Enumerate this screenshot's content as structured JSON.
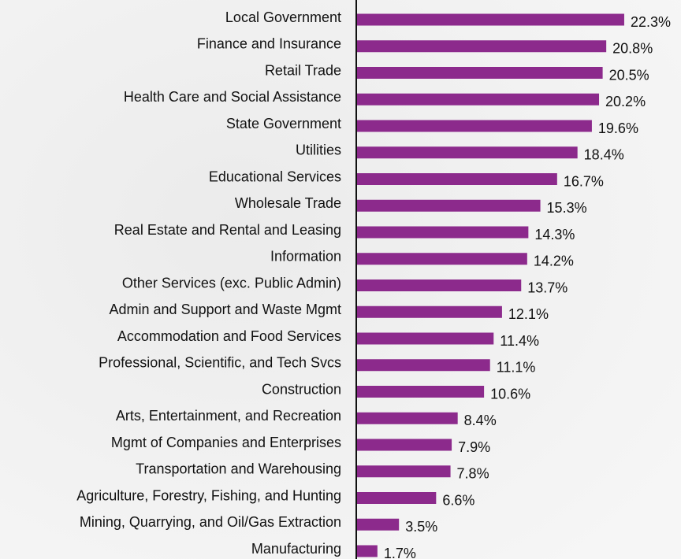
{
  "chart_data": {
    "type": "barh",
    "categories": [
      "Local Government",
      "Finance and Insurance",
      "Retail Trade",
      "Health Care and Social Assistance",
      "State Government",
      "Utilities",
      "Educational Services",
      "Wholesale Trade",
      "Real Estate and Rental and Leasing",
      "Information",
      "Other Services (exc. Public Admin)",
      "Admin and Support and Waste Mgmt",
      "Accommodation and Food Services",
      "Professional, Scientific, and Tech Svcs",
      "Construction",
      "Arts, Entertainment, and Recreation",
      "Mgmt of Companies and Enterprises",
      "Transportation and Warehousing",
      "Agriculture, Forestry, Fishing, and Hunting",
      "Mining, Quarrying, and Oil/Gas Extraction",
      "Manufacturing"
    ],
    "values": [
      22.3,
      20.8,
      20.5,
      20.2,
      19.6,
      18.4,
      16.7,
      15.3,
      14.3,
      14.2,
      13.7,
      12.1,
      11.4,
      11.1,
      10.6,
      8.4,
      7.9,
      7.8,
      6.6,
      3.5,
      1.7
    ],
    "value_labels": [
      "22.3%",
      "20.8%",
      "20.5%",
      "20.2%",
      "19.6%",
      "18.4%",
      "16.7%",
      "15.3%",
      "14.3%",
      "14.2%",
      "13.7%",
      "12.1%",
      "11.4%",
      "11.1%",
      "10.6%",
      "8.4%",
      "7.9%",
      "7.8%",
      "6.6%",
      "3.5%",
      "1.7%"
    ],
    "color": "#8c2a8c",
    "xlim": [
      0,
      25
    ]
  }
}
